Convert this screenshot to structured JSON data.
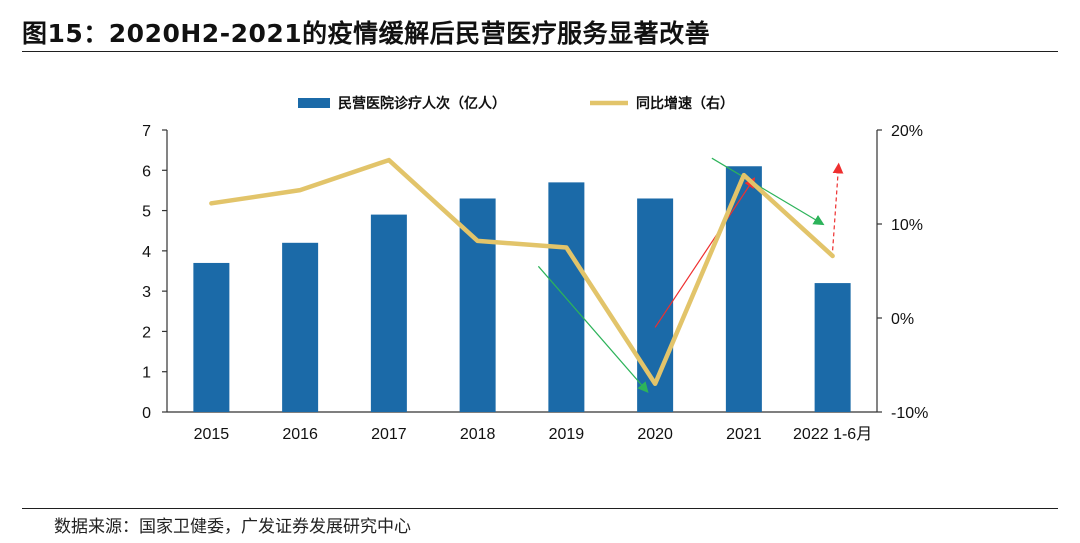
{
  "header": {
    "title": "图15：2020H2-2021的疫情缓解后民营医疗服务显著改善"
  },
  "footer": {
    "source": "数据来源：国家卫健委，广发证券发展研究中心"
  },
  "colors": {
    "bar": "#1b6aa8",
    "line": "#e2c46a",
    "arrow_green": "#2db35a",
    "arrow_red": "#ee2f2f"
  },
  "chart_data": {
    "type": "bar",
    "categories": [
      "2015",
      "2016",
      "2017",
      "2018",
      "2019",
      "2020",
      "2021",
      "2022 1-6月"
    ],
    "series": [
      {
        "name": "民营医院诊疗人次（亿人）",
        "type": "bar",
        "axis": "left",
        "values": [
          3.7,
          4.2,
          4.9,
          5.3,
          5.7,
          5.3,
          6.1,
          3.2
        ]
      },
      {
        "name": "同比增速（右）",
        "type": "line",
        "axis": "right",
        "values": [
          0.122,
          0.136,
          0.168,
          0.082,
          0.075,
          -0.07,
          0.152,
          0.066
        ]
      }
    ],
    "y_left": {
      "min": 0,
      "max": 7,
      "ticks": [
        "0",
        "1",
        "2",
        "3",
        "4",
        "5",
        "6",
        "7"
      ]
    },
    "y_right": {
      "min": -0.1,
      "max": 0.2,
      "ticks": [
        "-10%",
        "0%",
        "10%",
        "20%"
      ]
    },
    "legend_position": "top",
    "grid": false,
    "annotations": [
      {
        "kind": "arrow",
        "color": "green",
        "style": "solid",
        "from": {
          "x": "2019",
          "y": 0.055
        },
        "to": {
          "x": "2020",
          "y": -0.078
        }
      },
      {
        "kind": "arrow",
        "color": "red",
        "style": "solid",
        "from": {
          "x": "2020",
          "y": -0.01
        },
        "to": {
          "x": "2021",
          "y": 0.148
        }
      },
      {
        "kind": "arrow",
        "color": "green",
        "style": "solid",
        "from": {
          "x": "2021",
          "y": 0.17
        },
        "to": {
          "x": "2022 1-6月",
          "y": 0.1
        }
      },
      {
        "kind": "arrow",
        "color": "red",
        "style": "dashed",
        "from": {
          "x": "2022 1-6月",
          "y": 0.072
        },
        "to": {
          "x": "2022 1-6月",
          "y": 0.163
        }
      }
    ]
  }
}
